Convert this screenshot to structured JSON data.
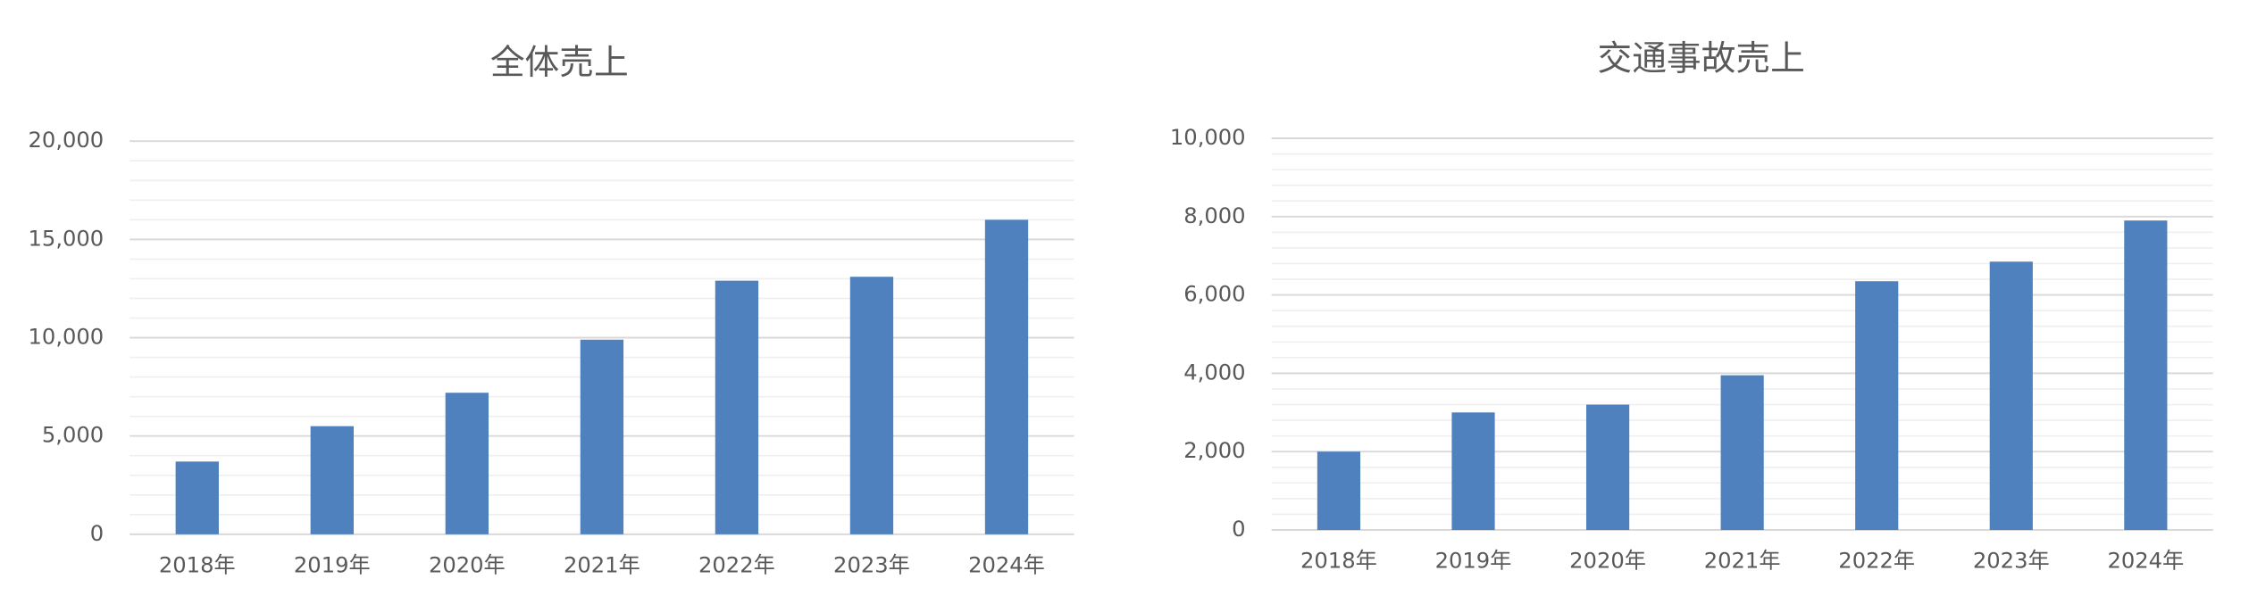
{
  "chart_data": [
    {
      "type": "bar",
      "title": "全体売上",
      "categories": [
        "2018年",
        "2019年",
        "2020年",
        "2021年",
        "2022年",
        "2023年",
        "2024年"
      ],
      "values": [
        3700,
        5500,
        7200,
        9900,
        12900,
        13100,
        16000
      ],
      "color": "#4e81bd",
      "ylim": [
        0,
        20000
      ],
      "yticks": [
        0,
        {
          "value": 5000,
          "label": "5,000"
        },
        {
          "value": 10000,
          "label": "10,000"
        },
        {
          "value": 15000,
          "label": "15,000"
        },
        {
          "value": 20000,
          "label": "20,000"
        }
      ],
      "minor_yticks": [
        1000,
        2000,
        3000,
        4000,
        6000,
        7000,
        8000,
        9000,
        11000,
        12000,
        13000,
        14000,
        16000,
        17000,
        18000,
        19000
      ],
      "grid": true
    },
    {
      "type": "bar",
      "title": "交通事故売上",
      "categories": [
        "2018年",
        "2019年",
        "2020年",
        "2021年",
        "2022年",
        "2023年",
        "2024年"
      ],
      "values": [
        2000,
        3000,
        3200,
        3950,
        6350,
        6850,
        7900
      ],
      "color": "#4e81bd",
      "ylim": [
        0,
        10000
      ],
      "yticks": [
        0,
        {
          "value": 2000,
          "label": "2,000"
        },
        {
          "value": 4000,
          "label": "4,000"
        },
        {
          "value": 6000,
          "label": "6,000"
        },
        {
          "value": 8000,
          "label": "8,000"
        },
        {
          "value": 10000,
          "label": "10,000"
        }
      ],
      "minor_yticks": [
        400,
        800,
        1200,
        1600,
        2400,
        2800,
        3200,
        3600,
        4400,
        4800,
        5200,
        5600,
        6400,
        6800,
        7200,
        7600,
        8400,
        8800,
        9200,
        9600
      ],
      "grid": true
    }
  ]
}
